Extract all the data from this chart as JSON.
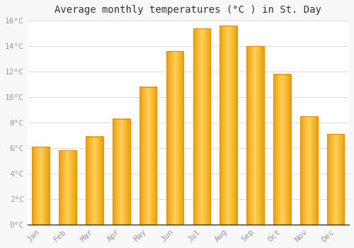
{
  "title": "Average monthly temperatures (°C ) in St. Day",
  "months": [
    "Jan",
    "Feb",
    "Mar",
    "Apr",
    "May",
    "Jun",
    "Jul",
    "Aug",
    "Sep",
    "Oct",
    "Nov",
    "Dec"
  ],
  "values": [
    6.1,
    5.8,
    6.9,
    8.3,
    10.8,
    13.6,
    15.4,
    15.6,
    14.0,
    11.8,
    8.5,
    7.1
  ],
  "bar_color_light": "#FFD060",
  "bar_color_dark": "#F0A000",
  "background_color": "#f8f8f8",
  "plot_bg_color": "#ffffff",
  "grid_color": "#dddddd",
  "ylim": [
    0,
    16
  ],
  "ytick_step": 2,
  "title_fontsize": 10,
  "tick_fontsize": 8,
  "tick_color": "#999999",
  "bar_width": 0.65
}
